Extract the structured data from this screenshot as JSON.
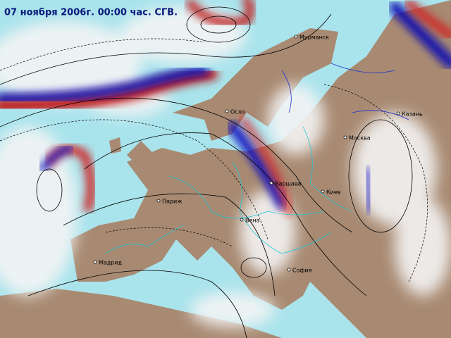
{
  "header": {
    "title": "07 ноября 2006г. 00:00 час. СГВ."
  },
  "cities": [
    {
      "name": "Мурманск"
    },
    {
      "name": "Осло"
    },
    {
      "name": "Казань"
    },
    {
      "name": "Москва"
    },
    {
      "name": "Варшава"
    },
    {
      "name": "Киев"
    },
    {
      "name": "Париж"
    },
    {
      "name": "Вена"
    },
    {
      "name": "Мадрид"
    },
    {
      "name": "София"
    }
  ]
}
